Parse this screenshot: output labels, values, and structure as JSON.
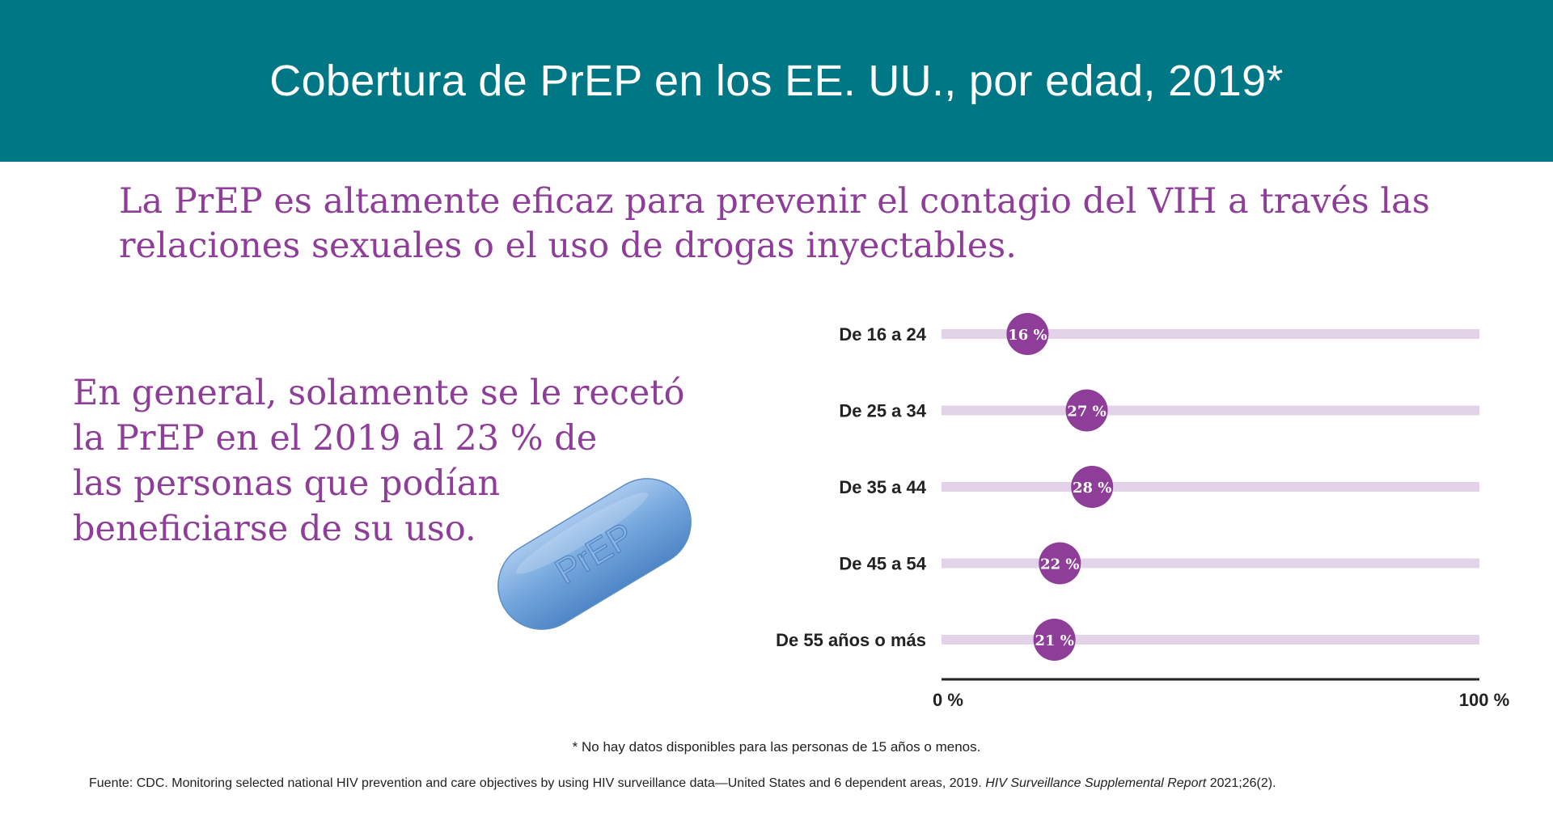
{
  "header": {
    "title": "Cobertura de PrEP en los EE. UU., por edad, 2019*"
  },
  "subtitle": "La PrEP es altamente eficaz para prevenir el contagio del VIH a través las relaciones sexuales o el uso de drogas inyectables.",
  "summary": {
    "lines": [
      "En general, solamente se le recetó",
      "la PrEP en el 2019 al 23 % de",
      "las personas que podían",
      "beneficiarse de su uso."
    ]
  },
  "pill": {
    "label": "PrEP",
    "color": "#6fa3d9"
  },
  "chart_data": {
    "type": "bar",
    "orientation": "horizontal",
    "categories": [
      "De 16 a 24",
      "De 25 a 34",
      "De 35 a 44",
      "De 45 a 54",
      "De 55 años o más"
    ],
    "values": [
      16,
      27,
      28,
      22,
      21
    ],
    "value_labels": [
      "16 %",
      "27 %",
      "28 %",
      "22 %",
      "21 %"
    ],
    "xlim": [
      0,
      100
    ],
    "x_tick_labels": [
      "0 %",
      "100 %"
    ],
    "colors": {
      "track": "#e3d3e8",
      "marker": "#8e3d98",
      "marker_text": "#ffffff",
      "axis": "#222222"
    }
  },
  "footnote": "* No hay datos disponibles para las personas de 15 años o menos.",
  "source": {
    "text": "Fuente: CDC. Monitoring selected national HIV prevention and care objectives by using HIV surveillance data—United States and 6 dependent areas, 2019. ",
    "journal": "HIV Surveillance Supplemental Report",
    "citation": " 2021;26(2)."
  }
}
